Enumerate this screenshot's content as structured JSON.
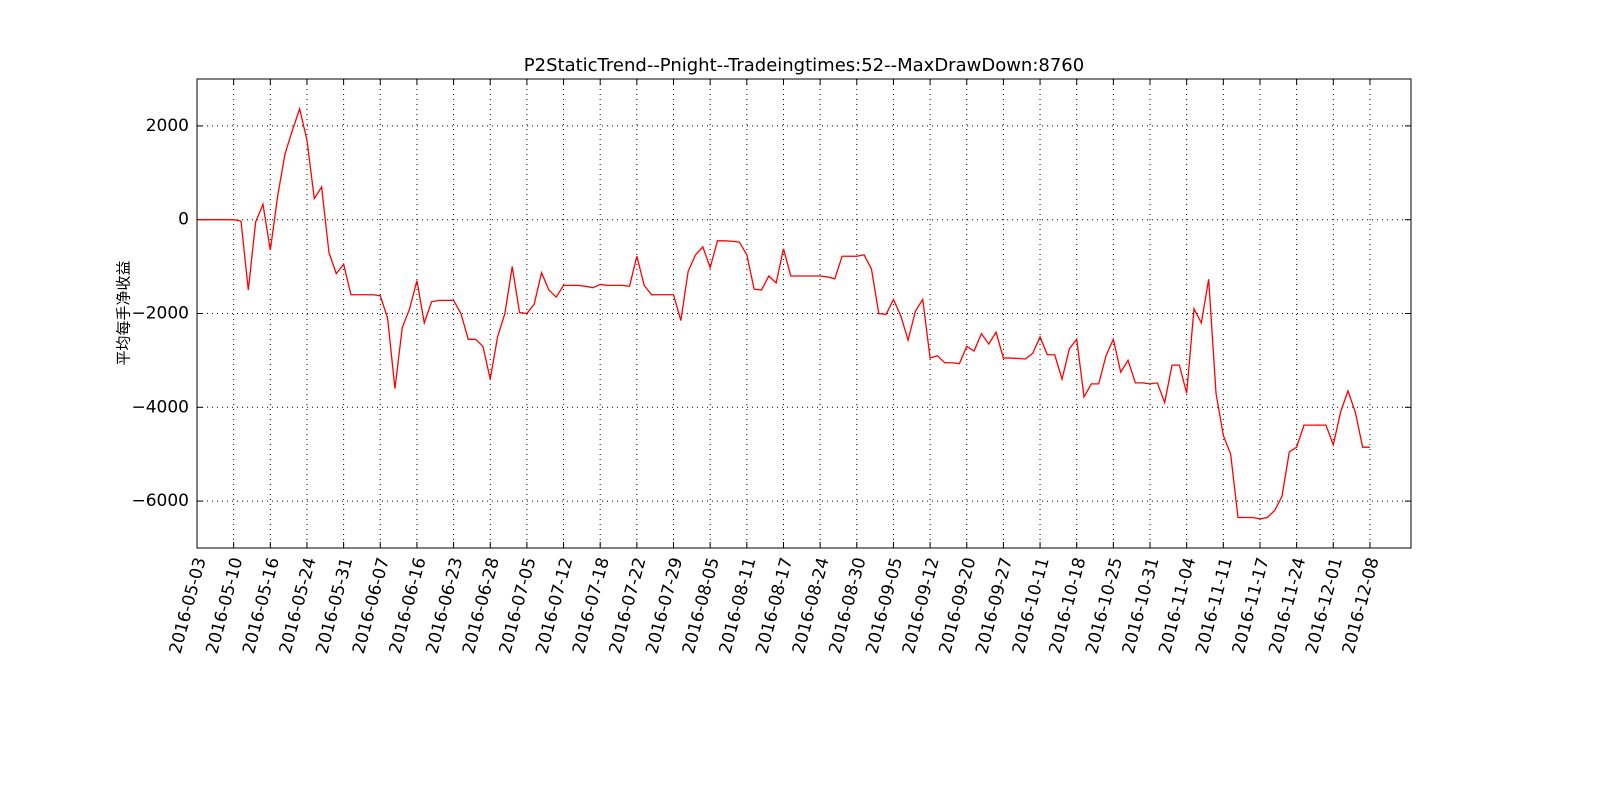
{
  "chart_data": {
    "type": "line",
    "title": "P2StaticTrend--Pnight--Tradeingtimes:52--MaxDrawDown:8760",
    "y_label": "平均每手净收益",
    "color": "#ff0000",
    "grid": true,
    "ylim": [
      -7000,
      3000
    ],
    "yticks": [
      {
        "value": -6000,
        "label": "−6000"
      },
      {
        "value": -4000,
        "label": "−4000"
      },
      {
        "value": -2000,
        "label": "−2000"
      },
      0,
      2000
    ],
    "categories": [
      "2016-05-03",
      null,
      null,
      null,
      null,
      "2016-05-10",
      null,
      null,
      null,
      null,
      "2016-05-16",
      null,
      null,
      null,
      null,
      "2016-05-24",
      null,
      null,
      null,
      null,
      "2016-05-31",
      null,
      null,
      null,
      null,
      "2016-06-07",
      null,
      null,
      null,
      null,
      "2016-06-16",
      null,
      null,
      null,
      null,
      "2016-06-23",
      null,
      null,
      null,
      null,
      "2016-06-28",
      null,
      null,
      null,
      null,
      "2016-07-05",
      null,
      null,
      null,
      null,
      "2016-07-12",
      null,
      null,
      null,
      null,
      "2016-07-18",
      null,
      null,
      null,
      null,
      "2016-07-22",
      null,
      null,
      null,
      null,
      "2016-07-29",
      null,
      null,
      null,
      null,
      "2016-08-05",
      null,
      null,
      null,
      null,
      "2016-08-11",
      null,
      null,
      null,
      null,
      "2016-08-17",
      null,
      null,
      null,
      null,
      "2016-08-24",
      null,
      null,
      null,
      null,
      "2016-08-30",
      null,
      null,
      null,
      null,
      "2016-09-05",
      null,
      null,
      null,
      null,
      "2016-09-12",
      null,
      null,
      null,
      null,
      "2016-09-20",
      null,
      null,
      null,
      null,
      "2016-09-27",
      null,
      null,
      null,
      null,
      "2016-10-11",
      null,
      null,
      null,
      null,
      "2016-10-18",
      null,
      null,
      null,
      null,
      "2016-10-25",
      null,
      null,
      null,
      null,
      "2016-10-31",
      null,
      null,
      null,
      null,
      "2016-11-04",
      null,
      null,
      null,
      null,
      "2016-11-11",
      null,
      null,
      null,
      null,
      "2016-11-17",
      null,
      null,
      null,
      null,
      "2016-11-24",
      null,
      null,
      null,
      null,
      "2016-12-01",
      null,
      null,
      null,
      null,
      "2016-12-08"
    ],
    "values": [
      0,
      0,
      0,
      0,
      0,
      0,
      -30,
      -1500,
      -50,
      330,
      -650,
      500,
      1400,
      1900,
      2360,
      1700,
      450,
      700,
      -700,
      -1150,
      -950,
      -1600,
      -1600,
      -1600,
      -1600,
      -1620,
      -2100,
      -3600,
      -2300,
      -1900,
      -1300,
      -2200,
      -1750,
      -1720,
      -1720,
      -1720,
      -2000,
      -2550,
      -2550,
      -2700,
      -3400,
      -2500,
      -2000,
      -1000,
      -1980,
      -2000,
      -1800,
      -1130,
      -1500,
      -1650,
      -1400,
      -1400,
      -1400,
      -1420,
      -1450,
      -1380,
      -1400,
      -1400,
      -1400,
      -1420,
      -780,
      -1400,
      -1600,
      -1600,
      -1600,
      -1600,
      -2150,
      -1100,
      -750,
      -580,
      -1020,
      -450,
      -450,
      -460,
      -480,
      -750,
      -1480,
      -1500,
      -1200,
      -1350,
      -620,
      -1200,
      -1200,
      -1200,
      -1200,
      -1200,
      -1220,
      -1260,
      -780,
      -780,
      -780,
      -750,
      -1050,
      -2000,
      -2020,
      -1700,
      -2050,
      -2570,
      -1950,
      -1700,
      -2950,
      -2900,
      -3050,
      -3050,
      -3070,
      -2700,
      -2800,
      -2430,
      -2650,
      -2400,
      -2950,
      -2950,
      -2960,
      -2970,
      -2850,
      -2500,
      -2880,
      -2880,
      -3400,
      -2750,
      -2550,
      -3780,
      -3500,
      -3500,
      -2900,
      -2550,
      -3250,
      -3000,
      -3480,
      -3480,
      -3500,
      -3480,
      -3900,
      -3100,
      -3100,
      -3700,
      -1900,
      -2200,
      -1270,
      -3700,
      -4600,
      -5000,
      -6350,
      -6350,
      -6350,
      -6380,
      -6350,
      -6200,
      -5900,
      -4950,
      -4850,
      -4380,
      -4380,
      -4380,
      -4380,
      -4800,
      -4100,
      -3650,
      -4100,
      -4850,
      -4850
    ]
  }
}
